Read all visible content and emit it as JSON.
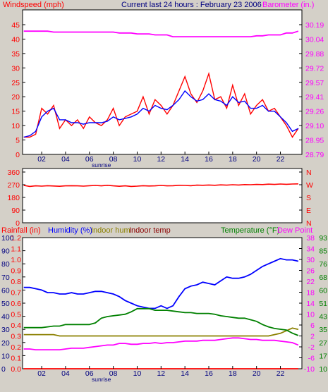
{
  "header": {
    "windspeed_label": "Windspeed (mph)",
    "title": "Current last 24 hours : February 23 2006",
    "barometer_label": "Barometer (in.)"
  },
  "bottom_header": {
    "rainfall_label": "Rainfall (in)",
    "humidity_label": "Humidity (%)",
    "indoor_hum_label": "Indoor hum",
    "indoor_temp_label": "Indoor temp",
    "temperature_label": "Temperature (°F)",
    "dewpoint_label": "Dew Point"
  },
  "x_ticks": [
    "02",
    "04",
    "06",
    "08",
    "10",
    "12",
    "14",
    "16",
    "18",
    "20",
    "22"
  ],
  "sunrise_label": "sunrise",
  "colors": {
    "wind": "#ff0000",
    "wind_avg": "#0000ff",
    "barometer": "#ff00ff",
    "direction": "#ff0000",
    "rain": "#ff0000",
    "humidity": "#0000ff",
    "indoor_hum": "#8b8000",
    "indoor_temp": "#8b0000",
    "temperature": "#008000",
    "dewpoint": "#ff00ff",
    "axis_blue": "#000080",
    "axis_green": "#008000",
    "axis_magenta": "#ff00ff"
  },
  "chart_data": [
    {
      "type": "line",
      "title": "Current last 24 hours : February 23 2006",
      "x_hours": [
        0.5,
        1,
        1.5,
        2,
        2.5,
        3,
        3.5,
        4,
        4.5,
        5,
        5.5,
        6,
        6.5,
        7,
        7.5,
        8,
        8.5,
        9,
        9.5,
        10,
        10.5,
        11,
        11.5,
        12,
        12.5,
        13,
        13.5,
        14,
        14.5,
        15,
        15.5,
        16,
        16.5,
        17,
        17.5,
        18,
        18.5,
        19,
        19.5,
        20,
        20.5,
        21,
        21.5,
        22,
        22.5,
        23,
        23.5
      ],
      "xlim": [
        0.4,
        23.8
      ],
      "left_axis": {
        "label": "Windspeed (mph)",
        "ylim": [
          0,
          45
        ],
        "ticks": [
          "0",
          "5",
          "10",
          "15",
          "20",
          "25",
          "30",
          "35",
          "40",
          "45"
        ]
      },
      "right_axis": {
        "label": "Barometer (in.)",
        "ylim": [
          28.79,
          30.19
        ],
        "ticks": [
          "28.79",
          "28.95",
          "29.10",
          "29.26",
          "29.41",
          "29.57",
          "29.72",
          "29.88",
          "30.04",
          "30.19"
        ]
      },
      "series": [
        {
          "axis": "left",
          "values": [
            6,
            6,
            7,
            16,
            14,
            17,
            9,
            12,
            10,
            12,
            9,
            13,
            11,
            10,
            12,
            16,
            10,
            13,
            14,
            15,
            20,
            14,
            19,
            17,
            14,
            17,
            22,
            27,
            21,
            18,
            22,
            28,
            19,
            20,
            16,
            24,
            17,
            21,
            14,
            17,
            19,
            15,
            16,
            13,
            10,
            6,
            9
          ]
        },
        {
          "axis": "left",
          "values": [
            6,
            6.5,
            8,
            13,
            15,
            16,
            12,
            12,
            11,
            11,
            10.5,
            11,
            11,
            11,
            11.5,
            13,
            12,
            12.5,
            13,
            14,
            16,
            15,
            17,
            16,
            15.5,
            17,
            19,
            22,
            20,
            18.5,
            19,
            21,
            19,
            18.5,
            17,
            20,
            18,
            18.5,
            16,
            16,
            17,
            15,
            15,
            13,
            11,
            8,
            9
          ]
        },
        {
          "axis": "right",
          "values": [
            30.12,
            30.12,
            30.12,
            30.12,
            30.12,
            30.11,
            30.11,
            30.11,
            30.11,
            30.11,
            30.11,
            30.11,
            30.11,
            30.11,
            30.11,
            30.11,
            30.1,
            30.1,
            30.1,
            30.09,
            30.09,
            30.09,
            30.08,
            30.08,
            30.08,
            30.06,
            30.06,
            30.06,
            30.06,
            30.06,
            30.06,
            30.06,
            30.06,
            30.06,
            30.06,
            30.06,
            30.06,
            30.06,
            30.06,
            30.07,
            30.07,
            30.08,
            30.08,
            30.08,
            30.1,
            30.1,
            30.12
          ]
        }
      ]
    },
    {
      "type": "line",
      "x_hours": [
        0.5,
        1,
        1.5,
        2,
        2.5,
        3,
        3.5,
        4,
        4.5,
        5,
        5.5,
        6,
        6.5,
        7,
        7.5,
        8,
        8.5,
        9,
        9.5,
        10,
        10.5,
        11,
        11.5,
        12,
        12.5,
        13,
        13.5,
        14,
        14.5,
        15,
        15.5,
        16,
        16.5,
        17,
        17.5,
        18,
        18.5,
        19,
        19.5,
        20,
        20.5,
        21,
        21.5,
        22,
        22.5,
        23,
        23.5
      ],
      "xlim": [
        0.4,
        23.8
      ],
      "left_axis": {
        "ylim": [
          0,
          360
        ],
        "ticks": [
          "0",
          "90",
          "180",
          "270",
          "360"
        ]
      },
      "right_axis": {
        "ticks": [
          "N",
          "E",
          "S",
          "W",
          "N"
        ]
      },
      "series": [
        {
          "values": [
            265,
            258,
            262,
            260,
            263,
            261,
            259,
            262,
            263,
            262,
            260,
            263,
            265,
            262,
            266,
            262,
            259,
            262,
            258,
            260,
            263,
            261,
            262,
            265,
            262,
            263,
            266,
            265,
            263,
            267,
            266,
            268,
            266,
            269,
            267,
            270,
            268,
            271,
            270,
            272,
            271,
            274,
            272,
            275,
            273,
            275,
            276
          ]
        }
      ]
    },
    {
      "type": "line",
      "x_hours": [
        0.5,
        1,
        1.5,
        2,
        2.5,
        3,
        3.5,
        4,
        4.5,
        5,
        5.5,
        6,
        6.5,
        7,
        7.5,
        8,
        8.5,
        9,
        9.5,
        10,
        10.5,
        11,
        11.5,
        12,
        12.5,
        13,
        13.5,
        14,
        14.5,
        15,
        15.5,
        16,
        16.5,
        17,
        17.5,
        18,
        18.5,
        19,
        19.5,
        20,
        20.5,
        21,
        21.5,
        22,
        22.5,
        23,
        23.5
      ],
      "xlim": [
        0.4,
        23.8
      ],
      "axes": {
        "rainfall": {
          "label": "Rainfall (in)",
          "ylim": [
            0,
            1.2
          ],
          "ticks": [
            "0.0",
            "0.1",
            "0.2",
            "0.3",
            "0.4",
            "0.5",
            "0.6",
            "0.7",
            "0.8",
            "0.9",
            "1.0",
            "1.1",
            "1.2"
          ]
        },
        "humidity": {
          "label": "Humidity (%)",
          "ylim": [
            0,
            100
          ],
          "ticks": [
            "0",
            "10",
            "20",
            "30",
            "40",
            "50",
            "60",
            "70",
            "80",
            "90",
            "100"
          ]
        },
        "temperature_c": {
          "ylim": [
            -10,
            40
          ],
          "ticks": [
            "-10",
            "-6",
            "-2",
            "2",
            "6",
            "10",
            "14",
            "18",
            "22",
            "26",
            "30",
            "34",
            "38"
          ]
        },
        "temperature_f": {
          "label": "Temperature (°F)",
          "ylim": [
            10,
            93
          ],
          "ticks": [
            "10",
            "17",
            "27",
            "35",
            "43",
            "51",
            "60",
            "68",
            "76",
            "85",
            "93"
          ]
        }
      },
      "series": [
        {
          "name": "Humidity (%)",
          "axis": "humidity",
          "values": [
            62,
            62,
            61,
            60,
            58,
            58,
            57,
            57,
            58,
            57,
            57,
            58,
            59,
            59,
            58,
            57,
            55,
            52,
            50,
            48,
            47,
            46,
            46,
            48,
            46,
            48,
            55,
            61,
            63,
            64,
            66,
            65,
            64,
            67,
            70,
            69,
            69,
            70,
            72,
            75,
            78,
            80,
            82,
            84,
            83,
            83,
            82
          ]
        },
        {
          "name": "Indoor hum",
          "axis": "humidity",
          "values": [
            26,
            26,
            26,
            26,
            26,
            26,
            25,
            25,
            25,
            25,
            25,
            25,
            25,
            25,
            25,
            25,
            25,
            25,
            25,
            25,
            25,
            25,
            25,
            25,
            25,
            25,
            25,
            25,
            25,
            25,
            25,
            25,
            25,
            25,
            25,
            25,
            25,
            25,
            25,
            25,
            25,
            25,
            26,
            27,
            29,
            31,
            30
          ]
        },
        {
          "name": "Temperature (°F)",
          "axis": "temperature_f",
          "values": [
            36,
            36,
            36,
            36,
            36.5,
            37,
            37,
            38,
            38,
            38,
            38,
            38,
            39,
            42,
            43,
            43.5,
            44,
            44.5,
            46,
            48,
            48,
            48,
            47,
            47,
            47,
            46.5,
            46,
            45.5,
            45.5,
            45,
            45,
            45,
            44.5,
            43.5,
            43,
            42.5,
            42,
            42,
            41,
            40,
            38,
            36.5,
            35.5,
            35,
            34.5,
            32.5,
            31
          ]
        },
        {
          "name": "Dew Point",
          "axis": "temperature_f",
          "values": [
            22.5,
            22.5,
            22,
            22,
            22,
            22,
            22,
            22.5,
            23,
            23,
            23,
            23.5,
            24,
            24.5,
            25,
            25,
            26,
            26,
            25.5,
            25.5,
            26,
            26,
            26.5,
            26,
            26.5,
            26.5,
            27,
            27.5,
            27.5,
            27.5,
            28,
            28,
            28,
            28.5,
            29,
            29.5,
            29.5,
            29,
            28.5,
            28.5,
            28,
            28,
            28,
            27.5,
            27,
            26.5,
            25
          ]
        },
        {
          "name": "Rainfall (in)",
          "axis": "rainfall",
          "values": [
            0.0,
            0.0,
            0.0,
            0.0,
            0.0,
            0.0,
            0.0,
            0.0,
            0.0,
            0.0,
            0.0,
            0.0,
            0.0,
            0.0,
            0.0,
            0.0,
            0.0,
            0.0,
            0.0,
            0.0,
            0.0,
            0.0,
            0.0,
            0.0,
            0.0,
            0.0,
            0.0,
            0.0,
            0.0,
            0.0,
            0.0,
            0.0,
            0.0,
            0.0,
            0.0,
            0.0,
            0.0,
            0.0,
            0.0,
            0.0,
            0.0,
            0.0,
            0.0,
            0.0,
            0.0,
            0.0,
            0.0
          ]
        }
      ]
    }
  ]
}
